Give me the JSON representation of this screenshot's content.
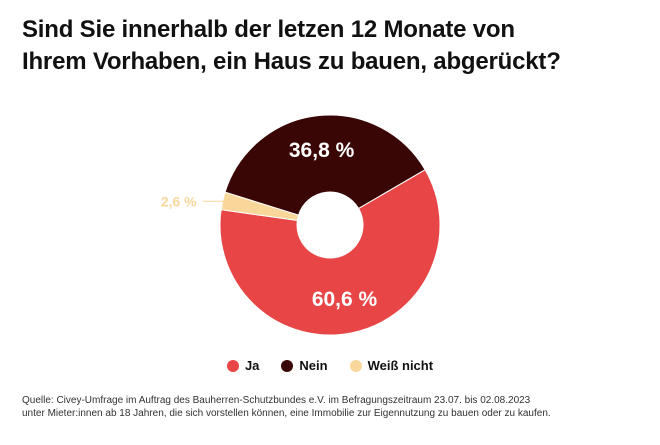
{
  "title_line1": "Sind Sie innerhalb der letzen 12 Monate von",
  "title_line2": "Ihrem Vorhaben, ein Haus zu bauen, abgerückt?",
  "source_line1": "Quelle: Civey-Umfrage im Auftrag des Bauherren-Schutzbundes e.V. im Befragungszeitraum 23.07. bis 02.08.2023",
  "source_line2": "unter Mieter:innen ab 18 Jahren, die sich vorstellen können, eine Immobilie zur Eigennutzung zu bauen oder zu kaufen.",
  "chart_data": {
    "type": "pie",
    "style": "donut",
    "title": "Sind Sie innerhalb der letzen 12 Monate von Ihrem Vorhaben, ein Haus zu bauen, abgerückt?",
    "categories": [
      "Ja",
      "Nein",
      "Weiß nicht"
    ],
    "values": [
      60.6,
      36.8,
      2.6
    ],
    "labels": [
      "60,6 %",
      "36,8 %",
      "2,6 %"
    ],
    "colors": [
      "#e84646",
      "#3a0505",
      "#f9d79a"
    ],
    "legend": "bottom-center"
  }
}
